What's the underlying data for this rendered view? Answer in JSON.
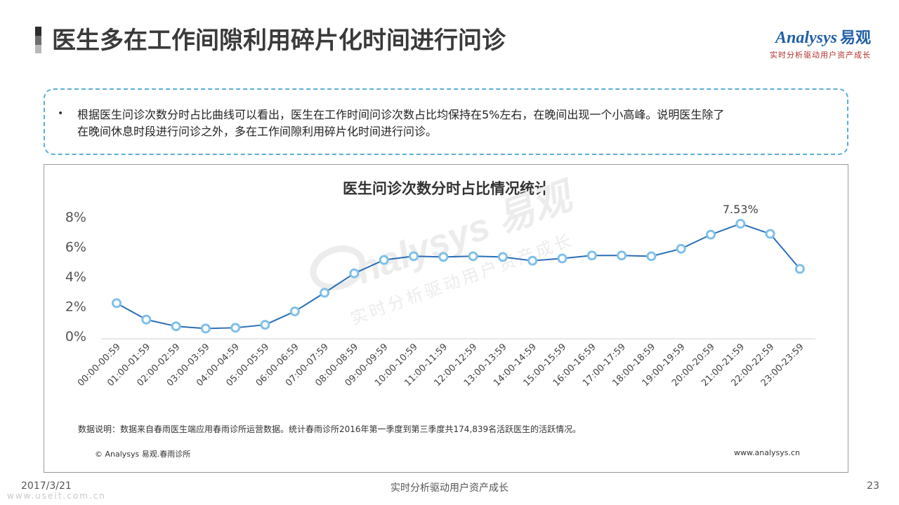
{
  "header": {
    "title": "医生多在工作间隙利用碎片化时间进行问诊",
    "logo_text": "Analysys",
    "logo_cn": "易观",
    "logo_tagline": "实时分析驱动用户资产成长"
  },
  "summary": {
    "bullet": "•",
    "line1": "根据医生问诊次数分时占比曲线可以看出，医生在工作时间问诊次数占比均保持在5%左右，在晚间出现一个小高峰。说明医生除了",
    "line2": "在晚间休息时段进行问诊之外，多在工作间隙利用碎片化时间进行问诊。"
  },
  "chart_data": {
    "type": "line",
    "title": "医生问诊次数分时占比情况统计",
    "categories": [
      "00:00-00:59",
      "01:00-01:59",
      "02:00-02:59",
      "03:00-03:59",
      "04:00-04:59",
      "05:00-05:59",
      "06:00-06:59",
      "07:00-07:59",
      "08:00-08:59",
      "09:00-09:59",
      "10:00-10:59",
      "11:00-11:59",
      "12:00-12:59",
      "13:00-13:59",
      "14:00-14:59",
      "15:00-15:59",
      "16:00-16:59",
      "17:00-17:59",
      "18:00-18:59",
      "19:00-19:59",
      "20:00-20:59",
      "21:00-21:59",
      "22:00-22:59",
      "23:00-23:59"
    ],
    "values": [
      2.2,
      1.1,
      0.65,
      0.5,
      0.55,
      0.75,
      1.65,
      2.9,
      4.2,
      5.1,
      5.35,
      5.3,
      5.35,
      5.3,
      5.05,
      5.2,
      5.4,
      5.4,
      5.35,
      5.85,
      6.8,
      7.53,
      6.85,
      4.5
    ],
    "yticks": [
      "0%",
      "2%",
      "4%",
      "6%",
      "8%"
    ],
    "ylim": [
      0,
      8
    ],
    "annotation": "7.53%",
    "line_color": "#2b6fb5",
    "marker_fill": "#ffffff",
    "marker_ring": "#7fc0ea"
  },
  "watermark": {
    "brand": "nalysys 易观",
    "tagline": "实时分析驱动用户资产成长"
  },
  "chart_notes": {
    "source": "数据说明：数据来自春雨医生端应用春雨诊所运营数据。统计春雨诊所2016年第一季度到第三季度共174,839名活跃医生的活跃情况。",
    "copyright": "© Analysys 易观.春雨诊所",
    "website": "www.analysys.cn"
  },
  "footer": {
    "date": "2017/3/21",
    "center": "实时分析驱动用户资产成长",
    "page": "23",
    "watermark": "www.useit.com.cn"
  }
}
